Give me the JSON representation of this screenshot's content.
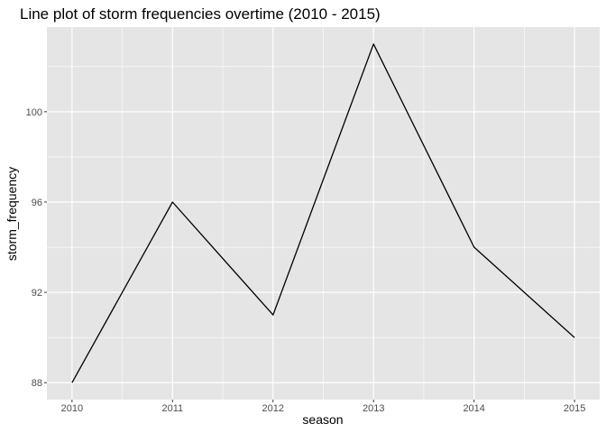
{
  "chart_data": {
    "type": "line",
    "title": "Line plot of storm frequencies overtime (2010 - 2015)",
    "xlabel": "season",
    "ylabel": "storm_frequency",
    "x": [
      2010,
      2011,
      2012,
      2013,
      2014,
      2015
    ],
    "x_tick_labels": [
      "2010",
      "2011",
      "2012",
      "2013",
      "2014",
      "2015"
    ],
    "y_ticks": [
      88,
      92,
      96,
      100
    ],
    "y_tick_labels": [
      "88",
      "92",
      "96",
      "100"
    ],
    "series": [
      {
        "values": [
          88,
          96,
          91,
          103,
          94,
          90
        ]
      }
    ],
    "xlim": [
      2009.75,
      2015.25
    ],
    "ylim": [
      87.25,
      103.75
    ],
    "grid": true,
    "legend": "none",
    "colors": {
      "panel": "#e5e5e5",
      "grid": "#ffffff",
      "line": "#000000"
    }
  }
}
